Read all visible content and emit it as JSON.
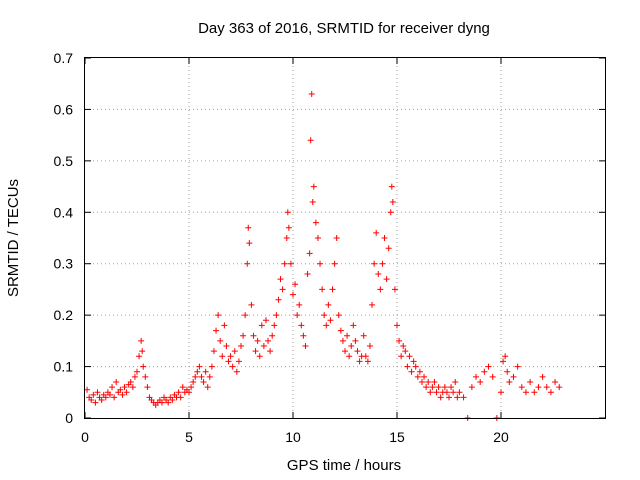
{
  "chart_data": {
    "type": "scatter",
    "title": "Day 363 of 2016, SRMTID for receiver dyng",
    "xlabel": "GPS time / hours",
    "ylabel": "SRMTID / TECUs",
    "xlim": [
      0,
      25
    ],
    "ylim": [
      0,
      0.7
    ],
    "xticks": [
      0,
      5,
      10,
      15,
      20
    ],
    "yticks": [
      0,
      0.1,
      0.2,
      0.3,
      0.4,
      0.5,
      0.6,
      0.7
    ],
    "xtick_labels": [
      "0",
      "5",
      "10",
      "15",
      "20"
    ],
    "ytick_labels": [
      "0",
      "0.1",
      "0.2",
      "0.3",
      "0.4",
      "0.5",
      "0.6",
      "0.7"
    ],
    "grid": true,
    "marker": "plus",
    "series_color": "#ff0000",
    "series": [
      {
        "name": "SRMTID",
        "points": [
          [
            0.1,
            0.055
          ],
          [
            0.2,
            0.04
          ],
          [
            0.3,
            0.035
          ],
          [
            0.4,
            0.045
          ],
          [
            0.5,
            0.03
          ],
          [
            0.6,
            0.05
          ],
          [
            0.7,
            0.04
          ],
          [
            0.8,
            0.035
          ],
          [
            0.9,
            0.045
          ],
          [
            1.0,
            0.04
          ],
          [
            1.1,
            0.05
          ],
          [
            1.2,
            0.045
          ],
          [
            1.3,
            0.06
          ],
          [
            1.4,
            0.04
          ],
          [
            1.5,
            0.07
          ],
          [
            1.6,
            0.05
          ],
          [
            1.7,
            0.055
          ],
          [
            1.8,
            0.045
          ],
          [
            1.9,
            0.06
          ],
          [
            2.0,
            0.05
          ],
          [
            2.1,
            0.065
          ],
          [
            2.2,
            0.07
          ],
          [
            2.3,
            0.06
          ],
          [
            2.4,
            0.08
          ],
          [
            2.5,
            0.09
          ],
          [
            2.6,
            0.12
          ],
          [
            2.7,
            0.15
          ],
          [
            2.75,
            0.13
          ],
          [
            2.8,
            0.1
          ],
          [
            2.9,
            0.08
          ],
          [
            3.0,
            0.06
          ],
          [
            3.1,
            0.04
          ],
          [
            3.2,
            0.035
          ],
          [
            3.3,
            0.03
          ],
          [
            3.4,
            0.025
          ],
          [
            3.5,
            0.03
          ],
          [
            3.6,
            0.035
          ],
          [
            3.7,
            0.03
          ],
          [
            3.8,
            0.04
          ],
          [
            3.9,
            0.035
          ],
          [
            4.0,
            0.03
          ],
          [
            4.1,
            0.04
          ],
          [
            4.2,
            0.035
          ],
          [
            4.3,
            0.045
          ],
          [
            4.4,
            0.04
          ],
          [
            4.5,
            0.05
          ],
          [
            4.6,
            0.04
          ],
          [
            4.7,
            0.06
          ],
          [
            4.8,
            0.05
          ],
          [
            4.9,
            0.055
          ],
          [
            5.0,
            0.05
          ],
          [
            5.1,
            0.06
          ],
          [
            5.2,
            0.07
          ],
          [
            5.3,
            0.08
          ],
          [
            5.4,
            0.09
          ],
          [
            5.5,
            0.1
          ],
          [
            5.6,
            0.08
          ],
          [
            5.7,
            0.07
          ],
          [
            5.8,
            0.09
          ],
          [
            5.9,
            0.06
          ],
          [
            6.0,
            0.08
          ],
          [
            6.1,
            0.1
          ],
          [
            6.2,
            0.13
          ],
          [
            6.3,
            0.17
          ],
          [
            6.4,
            0.2
          ],
          [
            6.5,
            0.15
          ],
          [
            6.6,
            0.12
          ],
          [
            6.7,
            0.18
          ],
          [
            6.8,
            0.14
          ],
          [
            6.9,
            0.11
          ],
          [
            7.0,
            0.12
          ],
          [
            7.1,
            0.1
          ],
          [
            7.2,
            0.13
          ],
          [
            7.3,
            0.09
          ],
          [
            7.4,
            0.11
          ],
          [
            7.5,
            0.14
          ],
          [
            7.6,
            0.16
          ],
          [
            7.7,
            0.2
          ],
          [
            7.8,
            0.3
          ],
          [
            7.85,
            0.37
          ],
          [
            7.9,
            0.34
          ],
          [
            8.0,
            0.22
          ],
          [
            8.1,
            0.16
          ],
          [
            8.2,
            0.13
          ],
          [
            8.3,
            0.15
          ],
          [
            8.4,
            0.12
          ],
          [
            8.5,
            0.18
          ],
          [
            8.6,
            0.14
          ],
          [
            8.7,
            0.19
          ],
          [
            8.8,
            0.15
          ],
          [
            8.9,
            0.13
          ],
          [
            9.0,
            0.16
          ],
          [
            9.1,
            0.18
          ],
          [
            9.2,
            0.2
          ],
          [
            9.3,
            0.23
          ],
          [
            9.4,
            0.27
          ],
          [
            9.5,
            0.25
          ],
          [
            9.6,
            0.3
          ],
          [
            9.7,
            0.35
          ],
          [
            9.75,
            0.4
          ],
          [
            9.8,
            0.37
          ],
          [
            9.9,
            0.3
          ],
          [
            10.0,
            0.24
          ],
          [
            10.1,
            0.26
          ],
          [
            10.2,
            0.2
          ],
          [
            10.3,
            0.22
          ],
          [
            10.4,
            0.18
          ],
          [
            10.5,
            0.16
          ],
          [
            10.6,
            0.14
          ],
          [
            10.7,
            0.28
          ],
          [
            10.8,
            0.32
          ],
          [
            10.85,
            0.54
          ],
          [
            10.9,
            0.63
          ],
          [
            10.95,
            0.42
          ],
          [
            11.0,
            0.45
          ],
          [
            11.1,
            0.38
          ],
          [
            11.2,
            0.35
          ],
          [
            11.3,
            0.3
          ],
          [
            11.4,
            0.25
          ],
          [
            11.5,
            0.2
          ],
          [
            11.6,
            0.18
          ],
          [
            11.7,
            0.22
          ],
          [
            11.8,
            0.19
          ],
          [
            11.9,
            0.25
          ],
          [
            12.0,
            0.3
          ],
          [
            12.1,
            0.35
          ],
          [
            12.2,
            0.2
          ],
          [
            12.3,
            0.17
          ],
          [
            12.4,
            0.15
          ],
          [
            12.5,
            0.13
          ],
          [
            12.6,
            0.16
          ],
          [
            12.7,
            0.12
          ],
          [
            12.8,
            0.14
          ],
          [
            12.9,
            0.18
          ],
          [
            13.0,
            0.15
          ],
          [
            13.1,
            0.13
          ],
          [
            13.2,
            0.11
          ],
          [
            13.3,
            0.12
          ],
          [
            13.4,
            0.16
          ],
          [
            13.5,
            0.12
          ],
          [
            13.6,
            0.11
          ],
          [
            13.7,
            0.14
          ],
          [
            13.8,
            0.22
          ],
          [
            13.9,
            0.3
          ],
          [
            14.0,
            0.36
          ],
          [
            14.1,
            0.28
          ],
          [
            14.2,
            0.25
          ],
          [
            14.3,
            0.3
          ],
          [
            14.4,
            0.35
          ],
          [
            14.5,
            0.27
          ],
          [
            14.6,
            0.33
          ],
          [
            14.7,
            0.4
          ],
          [
            14.75,
            0.45
          ],
          [
            14.8,
            0.42
          ],
          [
            14.9,
            0.25
          ],
          [
            15.0,
            0.18
          ],
          [
            15.1,
            0.15
          ],
          [
            15.2,
            0.12
          ],
          [
            15.3,
            0.14
          ],
          [
            15.4,
            0.13
          ],
          [
            15.5,
            0.1
          ],
          [
            15.6,
            0.12
          ],
          [
            15.7,
            0.09
          ],
          [
            15.8,
            0.11
          ],
          [
            15.9,
            0.1
          ],
          [
            16.0,
            0.08
          ],
          [
            16.1,
            0.09
          ],
          [
            16.2,
            0.07
          ],
          [
            16.3,
            0.08
          ],
          [
            16.4,
            0.06
          ],
          [
            16.5,
            0.07
          ],
          [
            16.6,
            0.05
          ],
          [
            16.7,
            0.06
          ],
          [
            16.8,
            0.07
          ],
          [
            16.9,
            0.05
          ],
          [
            17.0,
            0.06
          ],
          [
            17.1,
            0.04
          ],
          [
            17.2,
            0.05
          ],
          [
            17.3,
            0.06
          ],
          [
            17.4,
            0.05
          ],
          [
            17.5,
            0.04
          ],
          [
            17.6,
            0.06
          ],
          [
            17.7,
            0.05
          ],
          [
            17.8,
            0.07
          ],
          [
            17.9,
            0.04
          ],
          [
            18.0,
            0.05
          ],
          [
            18.2,
            0.04
          ],
          [
            18.4,
            0.0
          ],
          [
            18.6,
            0.06
          ],
          [
            18.8,
            0.08
          ],
          [
            19.0,
            0.07
          ],
          [
            19.2,
            0.09
          ],
          [
            19.4,
            0.1
          ],
          [
            19.6,
            0.08
          ],
          [
            19.8,
            0.0
          ],
          [
            20.0,
            0.05
          ],
          [
            20.1,
            0.11
          ],
          [
            20.2,
            0.12
          ],
          [
            20.3,
            0.09
          ],
          [
            20.4,
            0.07
          ],
          [
            20.6,
            0.08
          ],
          [
            20.8,
            0.1
          ],
          [
            21.0,
            0.06
          ],
          [
            21.2,
            0.05
          ],
          [
            21.4,
            0.07
          ],
          [
            21.6,
            0.05
          ],
          [
            21.8,
            0.06
          ],
          [
            22.0,
            0.08
          ],
          [
            22.2,
            0.06
          ],
          [
            22.4,
            0.05
          ],
          [
            22.6,
            0.07
          ],
          [
            22.8,
            0.06
          ]
        ]
      }
    ]
  }
}
